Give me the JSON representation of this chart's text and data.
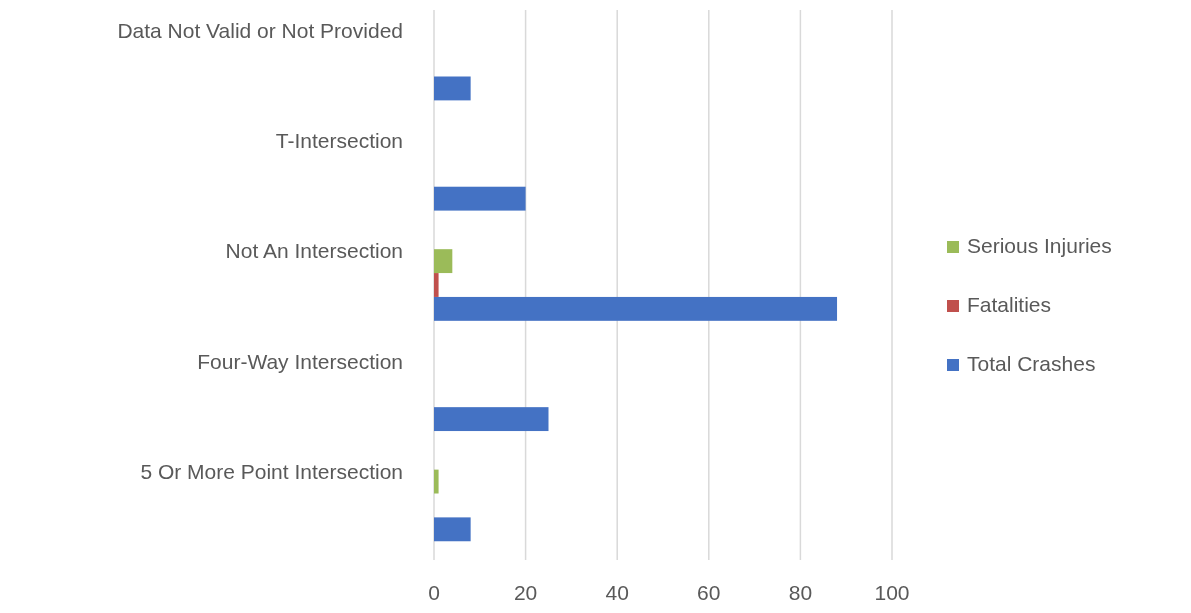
{
  "chart_data": {
    "type": "bar",
    "orientation": "horizontal",
    "categories": [
      "Data Not Valid or Not Provided",
      "T-Intersection",
      "Not An Intersection",
      "Four-Way Intersection",
      "5 Or More Point Intersection"
    ],
    "series": [
      {
        "name": "Total Crashes",
        "color": "#4472c4",
        "values": [
          8,
          20,
          88,
          25,
          8
        ]
      },
      {
        "name": "Fatalities",
        "color": "#c0504d",
        "values": [
          0,
          0,
          1,
          0,
          0
        ]
      },
      {
        "name": "Serious Injuries",
        "color": "#9bbb59",
        "values": [
          0,
          0,
          4,
          0,
          1
        ]
      }
    ],
    "xlim": [
      0,
      100
    ],
    "xticks": [
      0,
      20,
      40,
      60,
      80,
      100
    ],
    "grid": "x",
    "legend": "right"
  }
}
